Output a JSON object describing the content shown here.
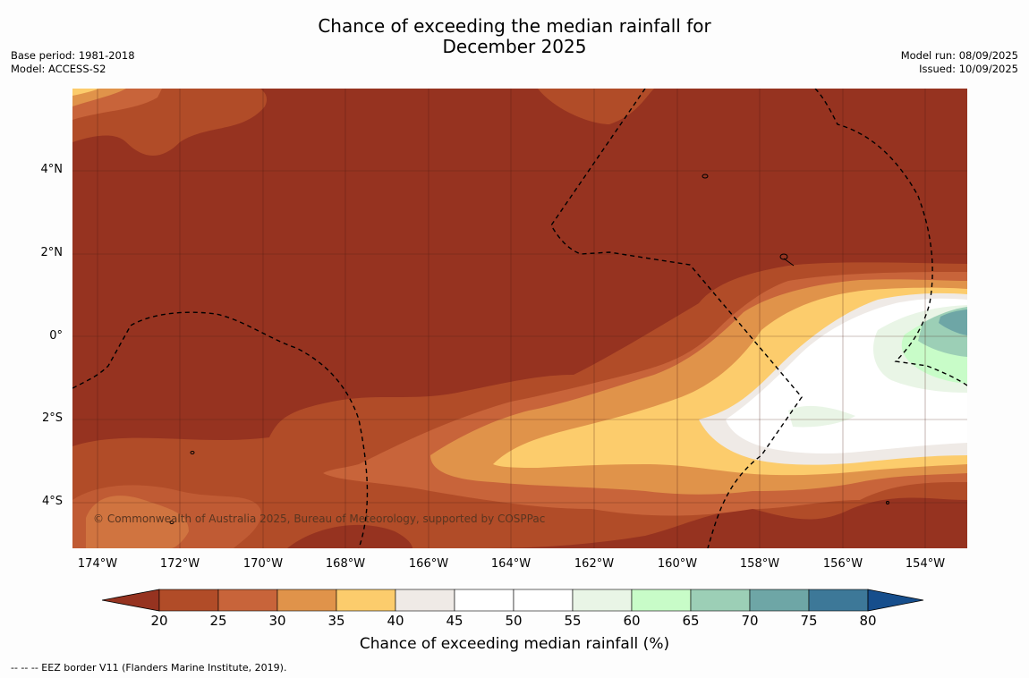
{
  "title_line1": "Chance of exceeding the median rainfall for",
  "title_line2": "December 2025",
  "meta_left": [
    "Base period: 1981-2018",
    "Model: ACCESS-S2"
  ],
  "meta_right": [
    "Model run: 08/09/2025",
    "Issued: 10/09/2025"
  ],
  "lat_labels": [
    "4°N",
    "2°N",
    "0°",
    "2°S",
    "4°S"
  ],
  "lon_labels": [
    "174°W",
    "172°W",
    "170°W",
    "168°W",
    "166°W",
    "164°W",
    "162°W",
    "160°W",
    "158°W",
    "156°W",
    "154°W"
  ],
  "copyright": "© Commonwealth of Australia 2025, Bureau of Meteorology, supported by COSPPac",
  "colorbar": {
    "ticks": [
      "20",
      "25",
      "30",
      "35",
      "40",
      "45",
      "50",
      "55",
      "60",
      "65",
      "70",
      "75",
      "80"
    ],
    "label": "Chance of exceeding median rainfall (%)",
    "colors": [
      "#b14c28",
      "#c8643a",
      "#e0934a",
      "#fccc6c",
      "#efeae6",
      "#ffffff",
      "#ffffff",
      "#e9f5e6",
      "#c8fcc8",
      "#9ccfb6",
      "#6ea6a6",
      "#3d7898"
    ],
    "under_color": "#963320",
    "over_color": "#164e8c"
  },
  "footer": "-- -- -- EEZ border V11 (Flanders Marine Institute, 2019)."
}
